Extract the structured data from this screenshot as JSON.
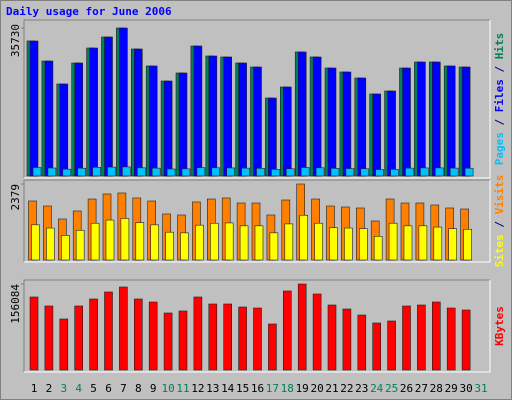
{
  "title": "Daily usage for June 2006",
  "chart_data": [
    {
      "type": "bar",
      "ylim": [
        0,
        35730
      ],
      "yticks": [
        35730
      ],
      "legend_separator": " / ",
      "series": [
        {
          "name": "Hits",
          "color": "#00805c",
          "values": [
            32600,
            27760,
            22210,
            27280,
            30900,
            33560,
            35730,
            30660,
            26560,
            22930,
            24870,
            31380,
            28970,
            28730,
            27280,
            26310,
            18830,
            21490,
            29940,
            28730,
            26070,
            25110,
            23660,
            19800,
            20520,
            26070,
            27520,
            27520,
            26560,
            26310,
            null
          ]
        },
        {
          "name": "Files",
          "color": "#0000ff",
          "values": [
            32590,
            27760,
            22210,
            27280,
            30900,
            33560,
            35730,
            30660,
            26560,
            22930,
            24870,
            31380,
            28970,
            28730,
            27280,
            26310,
            18830,
            21490,
            29940,
            28730,
            26070,
            25110,
            23660,
            19800,
            20520,
            26070,
            27520,
            27520,
            26560,
            26310,
            null
          ]
        },
        {
          "name": "Pages",
          "color": "#00c0ff",
          "values": [
            2050,
            1930,
            1650,
            1880,
            2100,
            2150,
            2200,
            1980,
            1900,
            1700,
            1720,
            2020,
            1980,
            1950,
            1900,
            1860,
            1600,
            1750,
            2050,
            1980,
            1850,
            1800,
            1750,
            1550,
            1600,
            1900,
            1950,
            1960,
            1900,
            1880,
            null
          ]
        }
      ]
    },
    {
      "type": "bar",
      "ylim": [
        0,
        2379
      ],
      "yticks": [
        2379
      ],
      "legend_separator": " / ",
      "series": [
        {
          "name": "Visits",
          "color": "#ff8000",
          "values": [
            1847,
            1690,
            1283,
            1534,
            1909,
            2066,
            2097,
            1941,
            1847,
            1440,
            1409,
            1816,
            1909,
            1941,
            1784,
            1784,
            1409,
            1878,
            2379,
            1909,
            1690,
            1659,
            1628,
            1221,
            1909,
            1784,
            1784,
            1722,
            1628,
            1596,
            null
          ]
        },
        {
          "name": "Sites",
          "color": "#ffff00",
          "values": [
            1100,
            1000,
            770,
            930,
            1150,
            1250,
            1300,
            1170,
            1100,
            870,
            850,
            1090,
            1150,
            1160,
            1070,
            1070,
            850,
            1130,
            1400,
            1150,
            1010,
            1000,
            980,
            740,
            1150,
            1070,
            1070,
            1030,
            980,
            960,
            null
          ]
        }
      ]
    },
    {
      "type": "bar",
      "ylim": [
        0,
        156084
      ],
      "yticks": [
        156084
      ],
      "categories": [
        "1",
        "2",
        "3",
        "4",
        "5",
        "6",
        "7",
        "8",
        "9",
        "10",
        "11",
        "12",
        "13",
        "14",
        "15",
        "16",
        "17",
        "18",
        "19",
        "20",
        "21",
        "22",
        "23",
        "24",
        "25",
        "26",
        "27",
        "28",
        "29",
        "30",
        "31"
      ],
      "weekend_days": [
        "3",
        "4",
        "10",
        "11",
        "17",
        "18",
        "24",
        "25",
        "31"
      ],
      "weekend_color": "#00805c",
      "series": [
        {
          "name": "KBytes",
          "color": "#ff0000",
          "values": [
            132495,
            116160,
            92565,
            116160,
            128865,
            141570,
            150645,
            128865,
            123420,
            103455,
            107085,
            132495,
            119790,
            119790,
            114345,
            112530,
            83490,
            143385,
            156084,
            137940,
            117975,
            110715,
            99825,
            85305,
            88935,
            116160,
            117975,
            123420,
            112530,
            108900,
            null
          ]
        }
      ]
    }
  ]
}
